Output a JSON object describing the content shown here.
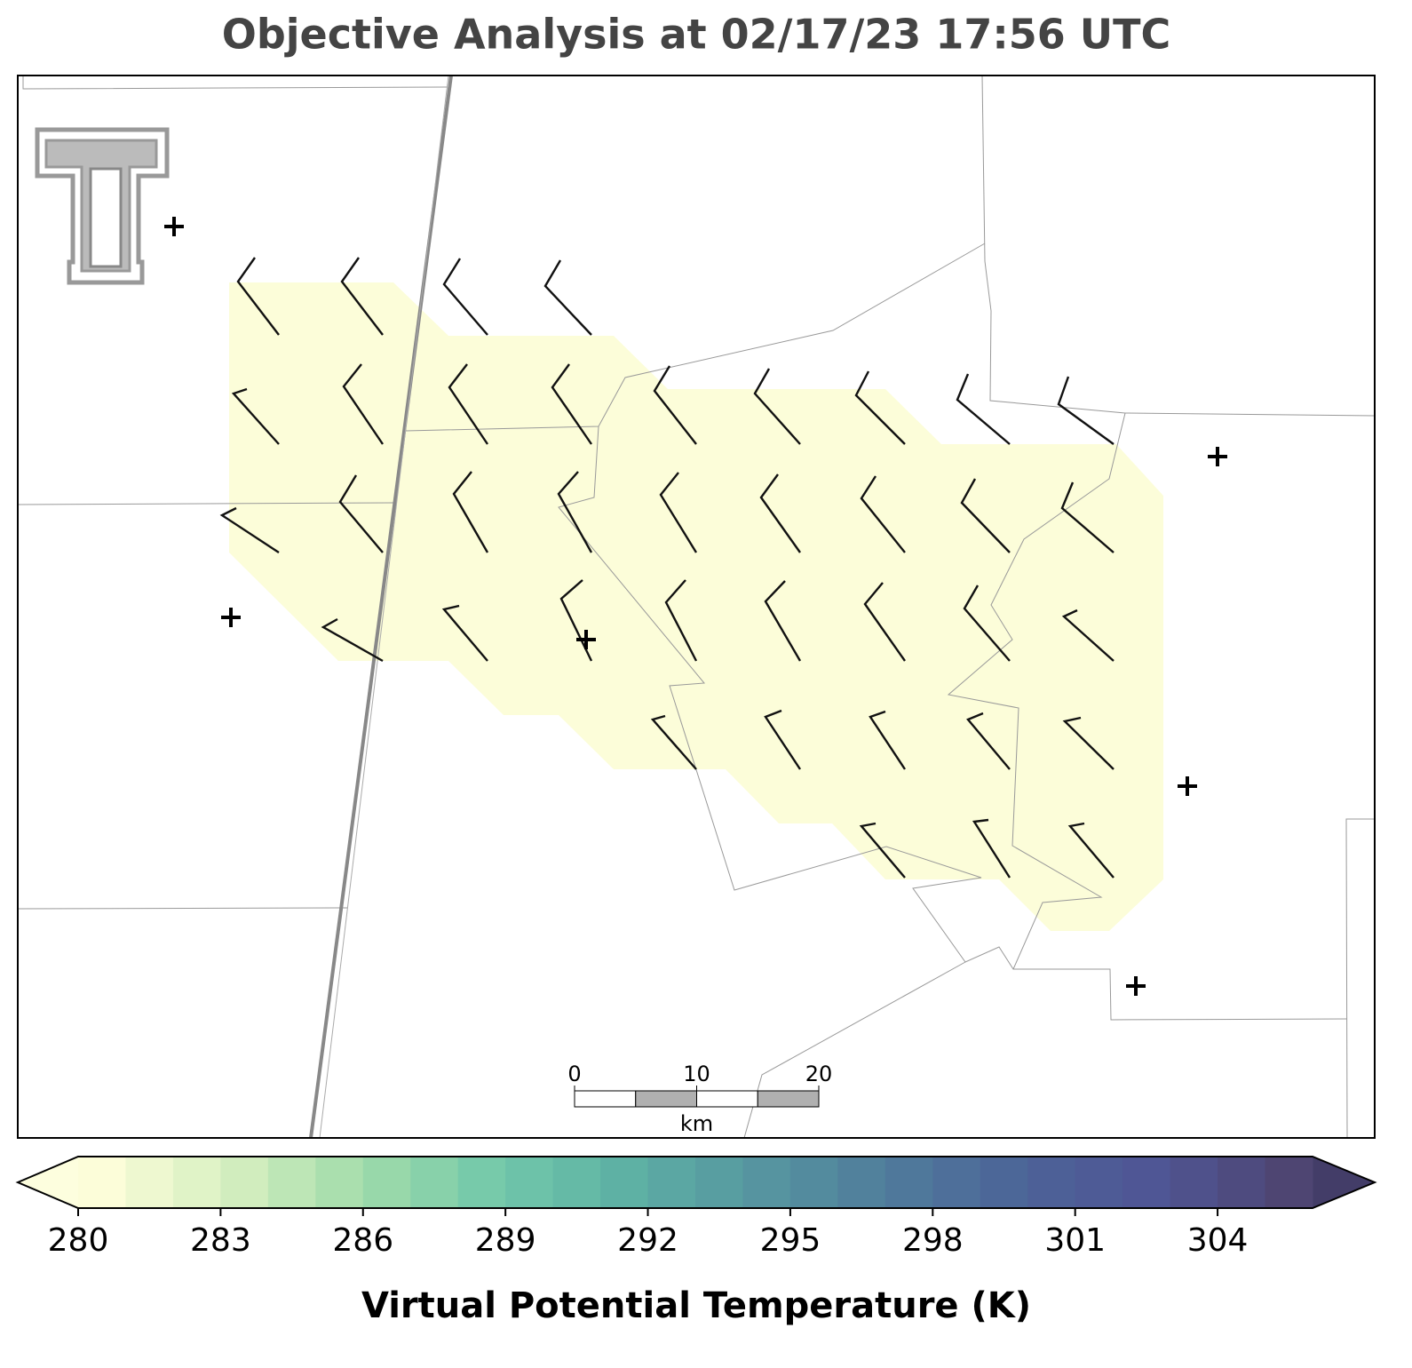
{
  "chart_data": {
    "type": "map",
    "title": "Objective Analysis at 02/17/23 17:56 UTC",
    "colorbar": {
      "label": "Virtual Potential Temperature (K)",
      "range": [
        280,
        306
      ],
      "step": 1,
      "ticks": [
        280,
        283,
        286,
        289,
        292,
        295,
        298,
        301,
        304
      ],
      "colormap": [
        "#fcfdd9",
        "#d5efc0",
        "#9fdbaa",
        "#72c8aa",
        "#5db0a4",
        "#5695a0",
        "#4f7b9b",
        "#4c6398",
        "#4f5595",
        "#4e4572"
      ],
      "under_color": "#fdfede",
      "over_color": "#433d68"
    },
    "scale_bar": {
      "ticks": [
        0,
        10,
        20
      ],
      "unit": "km",
      "colors": [
        "#ffffff",
        "#b0b0b0"
      ],
      "segment": 5
    }
  }
}
